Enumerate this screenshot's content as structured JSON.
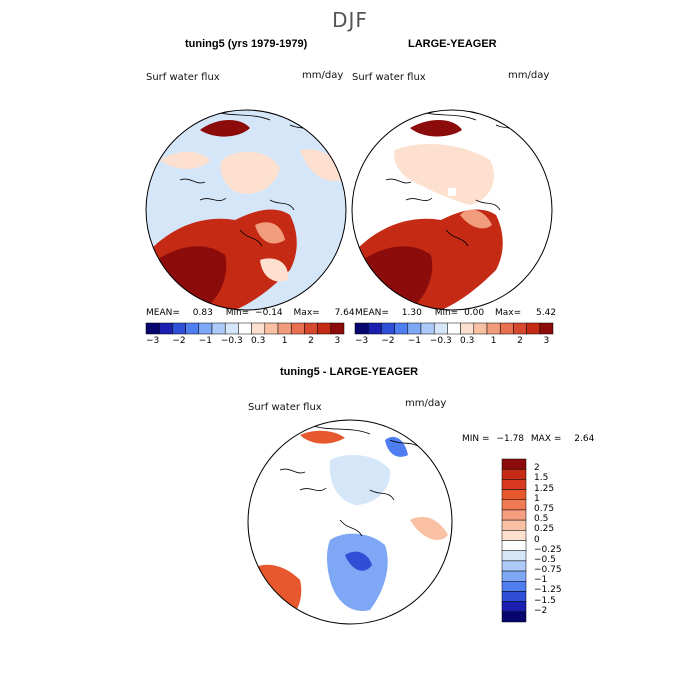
{
  "season": "DJF",
  "panels": [
    {
      "title": "tuning5 (yrs 1979-1979)",
      "field": "Surf water flux",
      "units": "mm/day",
      "stats": {
        "mean_label": "MEAN=",
        "mean": "0.83",
        "min_label": "Min=",
        "min": "−0.14",
        "max_label": "Max=",
        "max": "7.64"
      },
      "colors": {
        "ocean": "#d6e6f9",
        "land_low": "#fde0cf",
        "land_mid": "#f19c7c",
        "land_high": "#c52a14",
        "dark": "#8c0c0b"
      }
    },
    {
      "title": "LARGE-YEAGER",
      "field": "Surf water flux",
      "units": "mm/day",
      "stats": {
        "mean_label": "MEAN=",
        "mean": "1.30",
        "min_label": "Min=",
        "min": "0.00",
        "max_label": "Max=",
        "max": "5.42"
      },
      "colors": {
        "ocean": "#ffffff",
        "land_low": "#fde0cf",
        "land_mid": "#f19c7c",
        "land_high": "#c52a14",
        "dark": "#8c0c0b"
      }
    }
  ],
  "top_colorbar": {
    "ticks": [
      "−3",
      "−2",
      "−1",
      "−0.3",
      "0.3",
      "1",
      "2",
      "3"
    ],
    "colors": [
      "#08066e",
      "#1b1fb0",
      "#2f4fd6",
      "#4f7ef0",
      "#7ea8f5",
      "#aecaf8",
      "#d6e6f9",
      "#ffffff",
      "#fde0cf",
      "#f9c0a3",
      "#f19c7c",
      "#e6704f",
      "#d64830",
      "#c52a14",
      "#8c0c0b"
    ]
  },
  "diff_panel": {
    "title": "tuning5 - LARGE-YEAGER",
    "field": "Surf water flux",
    "units": "mm/day",
    "min_label": "MIN =",
    "min": "−1.78",
    "max_label": "MAX =",
    "max": "2.64"
  },
  "diff_colorbar": {
    "labels": [
      "2",
      "1.5",
      "1.25",
      "1",
      "0.75",
      "0.5",
      "0.25",
      "0",
      "−0.25",
      "−0.5",
      "−0.75",
      "−1",
      "−1.25",
      "−1.5",
      "−2"
    ],
    "colors": [
      "#8c0c0b",
      "#c52a14",
      "#d93a1f",
      "#e8582f",
      "#f07a52",
      "#f59e7f",
      "#f9c0a3",
      "#fde0cf",
      "#ffffff",
      "#d6e6f9",
      "#aecaf8",
      "#7ea8f5",
      "#4f7ef0",
      "#2f4fd6",
      "#1b1fb0",
      "#08066e"
    ]
  }
}
